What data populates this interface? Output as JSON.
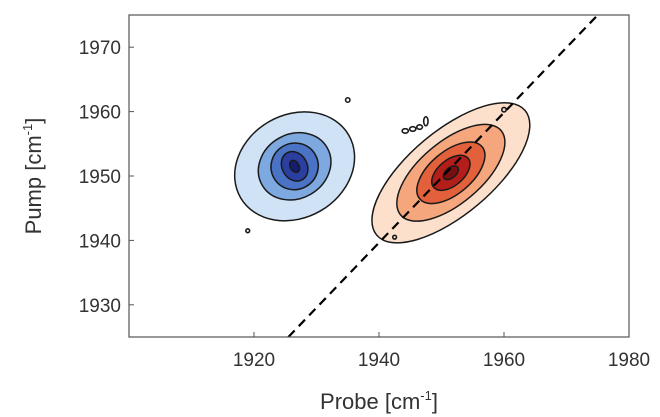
{
  "chart_data": {
    "type": "contour",
    "xlabel": {
      "text": "Probe [cm",
      "sup": "-1",
      "close": "]"
    },
    "ylabel": {
      "text": "Pump [cm",
      "sup": "-1",
      "close": "]"
    },
    "xlim": [
      1900,
      1980
    ],
    "ylim": [
      1925,
      1975
    ],
    "xticks": [
      1920,
      1940,
      1960,
      1980
    ],
    "yticks": [
      1930,
      1940,
      1950,
      1960,
      1970
    ],
    "diagonal": {
      "style": "dashed",
      "color": "#000000",
      "x": [
        1925.5,
        1975
      ],
      "y": [
        1925,
        1975
      ]
    },
    "series": [
      {
        "sign": "negative",
        "colors": [
          "#d0e2f5",
          "#7ea9e0",
          "#4a73c6",
          "#2a3fa0",
          "#151d70"
        ],
        "center": [
          1926.5,
          1951.5
        ],
        "levels": [
          {
            "rx": 10.0,
            "ry": 8.0,
            "angle": 30
          },
          {
            "rx": 6.0,
            "ry": 5.0,
            "angle": 30
          },
          {
            "rx": 3.8,
            "ry": 3.6,
            "angle": 30
          },
          {
            "rx": 2.0,
            "ry": 2.4,
            "angle": 30
          },
          {
            "rx": 0.7,
            "ry": 1.0,
            "angle": 30
          }
        ]
      },
      {
        "sign": "positive",
        "colors": [
          "#fce0cc",
          "#f5a67c",
          "#e2603a",
          "#b41e1a",
          "#7a0f0f"
        ],
        "center": [
          1951.5,
          1950.5
        ],
        "levels": [
          {
            "rx": 15.5,
            "ry": 6.5,
            "angle": 40
          },
          {
            "rx": 10.5,
            "ry": 4.8,
            "angle": 40
          },
          {
            "rx": 6.5,
            "ry": 3.3,
            "angle": 40
          },
          {
            "rx": 3.6,
            "ry": 2.0,
            "angle": 40
          },
          {
            "rx": 1.4,
            "ry": 0.8,
            "angle": 40
          }
        ]
      }
    ],
    "specks": [
      {
        "x": 1935.0,
        "y": 1961.8,
        "rx": 0.35,
        "ry": 0.35
      },
      {
        "x": 1944.2,
        "y": 1957.0,
        "rx": 0.5,
        "ry": 0.35
      },
      {
        "x": 1945.4,
        "y": 1957.3,
        "rx": 0.5,
        "ry": 0.35
      },
      {
        "x": 1946.5,
        "y": 1957.6,
        "rx": 0.45,
        "ry": 0.35
      },
      {
        "x": 1947.5,
        "y": 1958.5,
        "rx": 0.35,
        "ry": 0.7
      },
      {
        "x": 1960.0,
        "y": 1960.3,
        "rx": 0.35,
        "ry": 0.35
      },
      {
        "x": 1919.0,
        "y": 1941.5,
        "rx": 0.3,
        "ry": 0.3
      },
      {
        "x": 1942.5,
        "y": 1940.5,
        "rx": 0.3,
        "ry": 0.3
      }
    ]
  }
}
